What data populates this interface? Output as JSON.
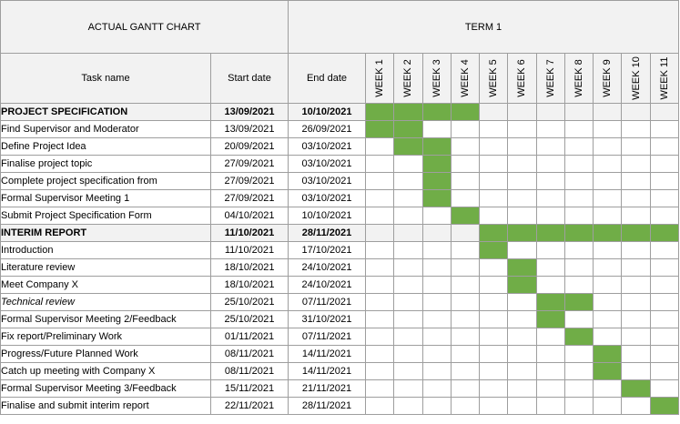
{
  "header": {
    "chart_title": "ACTUAL GANTT CHART",
    "term": "TERM 1",
    "task_name": "Task name",
    "start_date": "Start date",
    "end_date": "End date"
  },
  "weeks": [
    "WEEK 1",
    "WEEK 2",
    "WEEK 3",
    "WEEK 4",
    "WEEK 5",
    "WEEK 6",
    "WEEK 7",
    "WEEK 8",
    "WEEK 9",
    "WEEK 10",
    "WEEK 11"
  ],
  "bar_color": "#70ad47",
  "tasks": [
    {
      "name": "PROJECT SPECIFICATION",
      "start": "13/09/2021",
      "end": "10/10/2021",
      "style": "section",
      "weeks": [
        1,
        2,
        3,
        4
      ]
    },
    {
      "name": "Find Supervisor and Moderator",
      "start": "13/09/2021",
      "end": "26/09/2021",
      "style": "",
      "weeks": [
        1,
        2
      ]
    },
    {
      "name": "Define Project Idea",
      "start": "20/09/2021",
      "end": "03/10/2021",
      "style": "",
      "weeks": [
        2,
        3
      ]
    },
    {
      "name": "Finalise project topic",
      "start": "27/09/2021",
      "end": "03/10/2021",
      "style": "",
      "weeks": [
        3
      ]
    },
    {
      "name": "Complete project specification from",
      "start": "27/09/2021",
      "end": "03/10/2021",
      "style": "",
      "weeks": [
        3
      ]
    },
    {
      "name": "Formal Supervisor Meeting 1",
      "start": "27/09/2021",
      "end": "03/10/2021",
      "style": "",
      "weeks": [
        3
      ]
    },
    {
      "name": "Submit Project Specification Form",
      "start": "04/10/2021",
      "end": "10/10/2021",
      "style": "",
      "weeks": [
        4
      ]
    },
    {
      "name": "INTERIM REPORT",
      "start": "11/10/2021",
      "end": "28/11/2021",
      "style": "section",
      "weeks": [
        5,
        6,
        7,
        8,
        9,
        10,
        11
      ]
    },
    {
      "name": "Introduction",
      "start": "11/10/2021",
      "end": "17/10/2021",
      "style": "",
      "weeks": [
        5
      ]
    },
    {
      "name": "Literature review",
      "start": "18/10/2021",
      "end": "24/10/2021",
      "style": "",
      "weeks": [
        6
      ]
    },
    {
      "name": "Meet Company X",
      "start": "18/10/2021",
      "end": "24/10/2021",
      "style": "",
      "weeks": [
        6
      ]
    },
    {
      "name": "Technical review",
      "start": "25/10/2021",
      "end": "07/11/2021",
      "style": "italic",
      "weeks": [
        7,
        8
      ]
    },
    {
      "name": "Formal Supervisor Meeting 2/Feedback",
      "start": "25/10/2021",
      "end": "31/10/2021",
      "style": "",
      "weeks": [
        7
      ]
    },
    {
      "name": "Fix report/Preliminary Work",
      "start": "01/11/2021",
      "end": "07/11/2021",
      "style": "",
      "weeks": [
        8
      ]
    },
    {
      "name": "Progress/Future Planned Work",
      "start": "08/11/2021",
      "end": "14/11/2021",
      "style": "",
      "weeks": [
        9
      ]
    },
    {
      "name": "Catch up meeting with Company X",
      "start": "08/11/2021",
      "end": "14/11/2021",
      "style": "",
      "weeks": [
        9
      ]
    },
    {
      "name": "Formal Supervisor Meeting 3/Feedback",
      "start": "15/11/2021",
      "end": "21/11/2021",
      "style": "",
      "weeks": [
        10
      ]
    },
    {
      "name": "Finalise and submit interim report",
      "start": "22/11/2021",
      "end": "28/11/2021",
      "style": "",
      "weeks": [
        11
      ]
    }
  ]
}
